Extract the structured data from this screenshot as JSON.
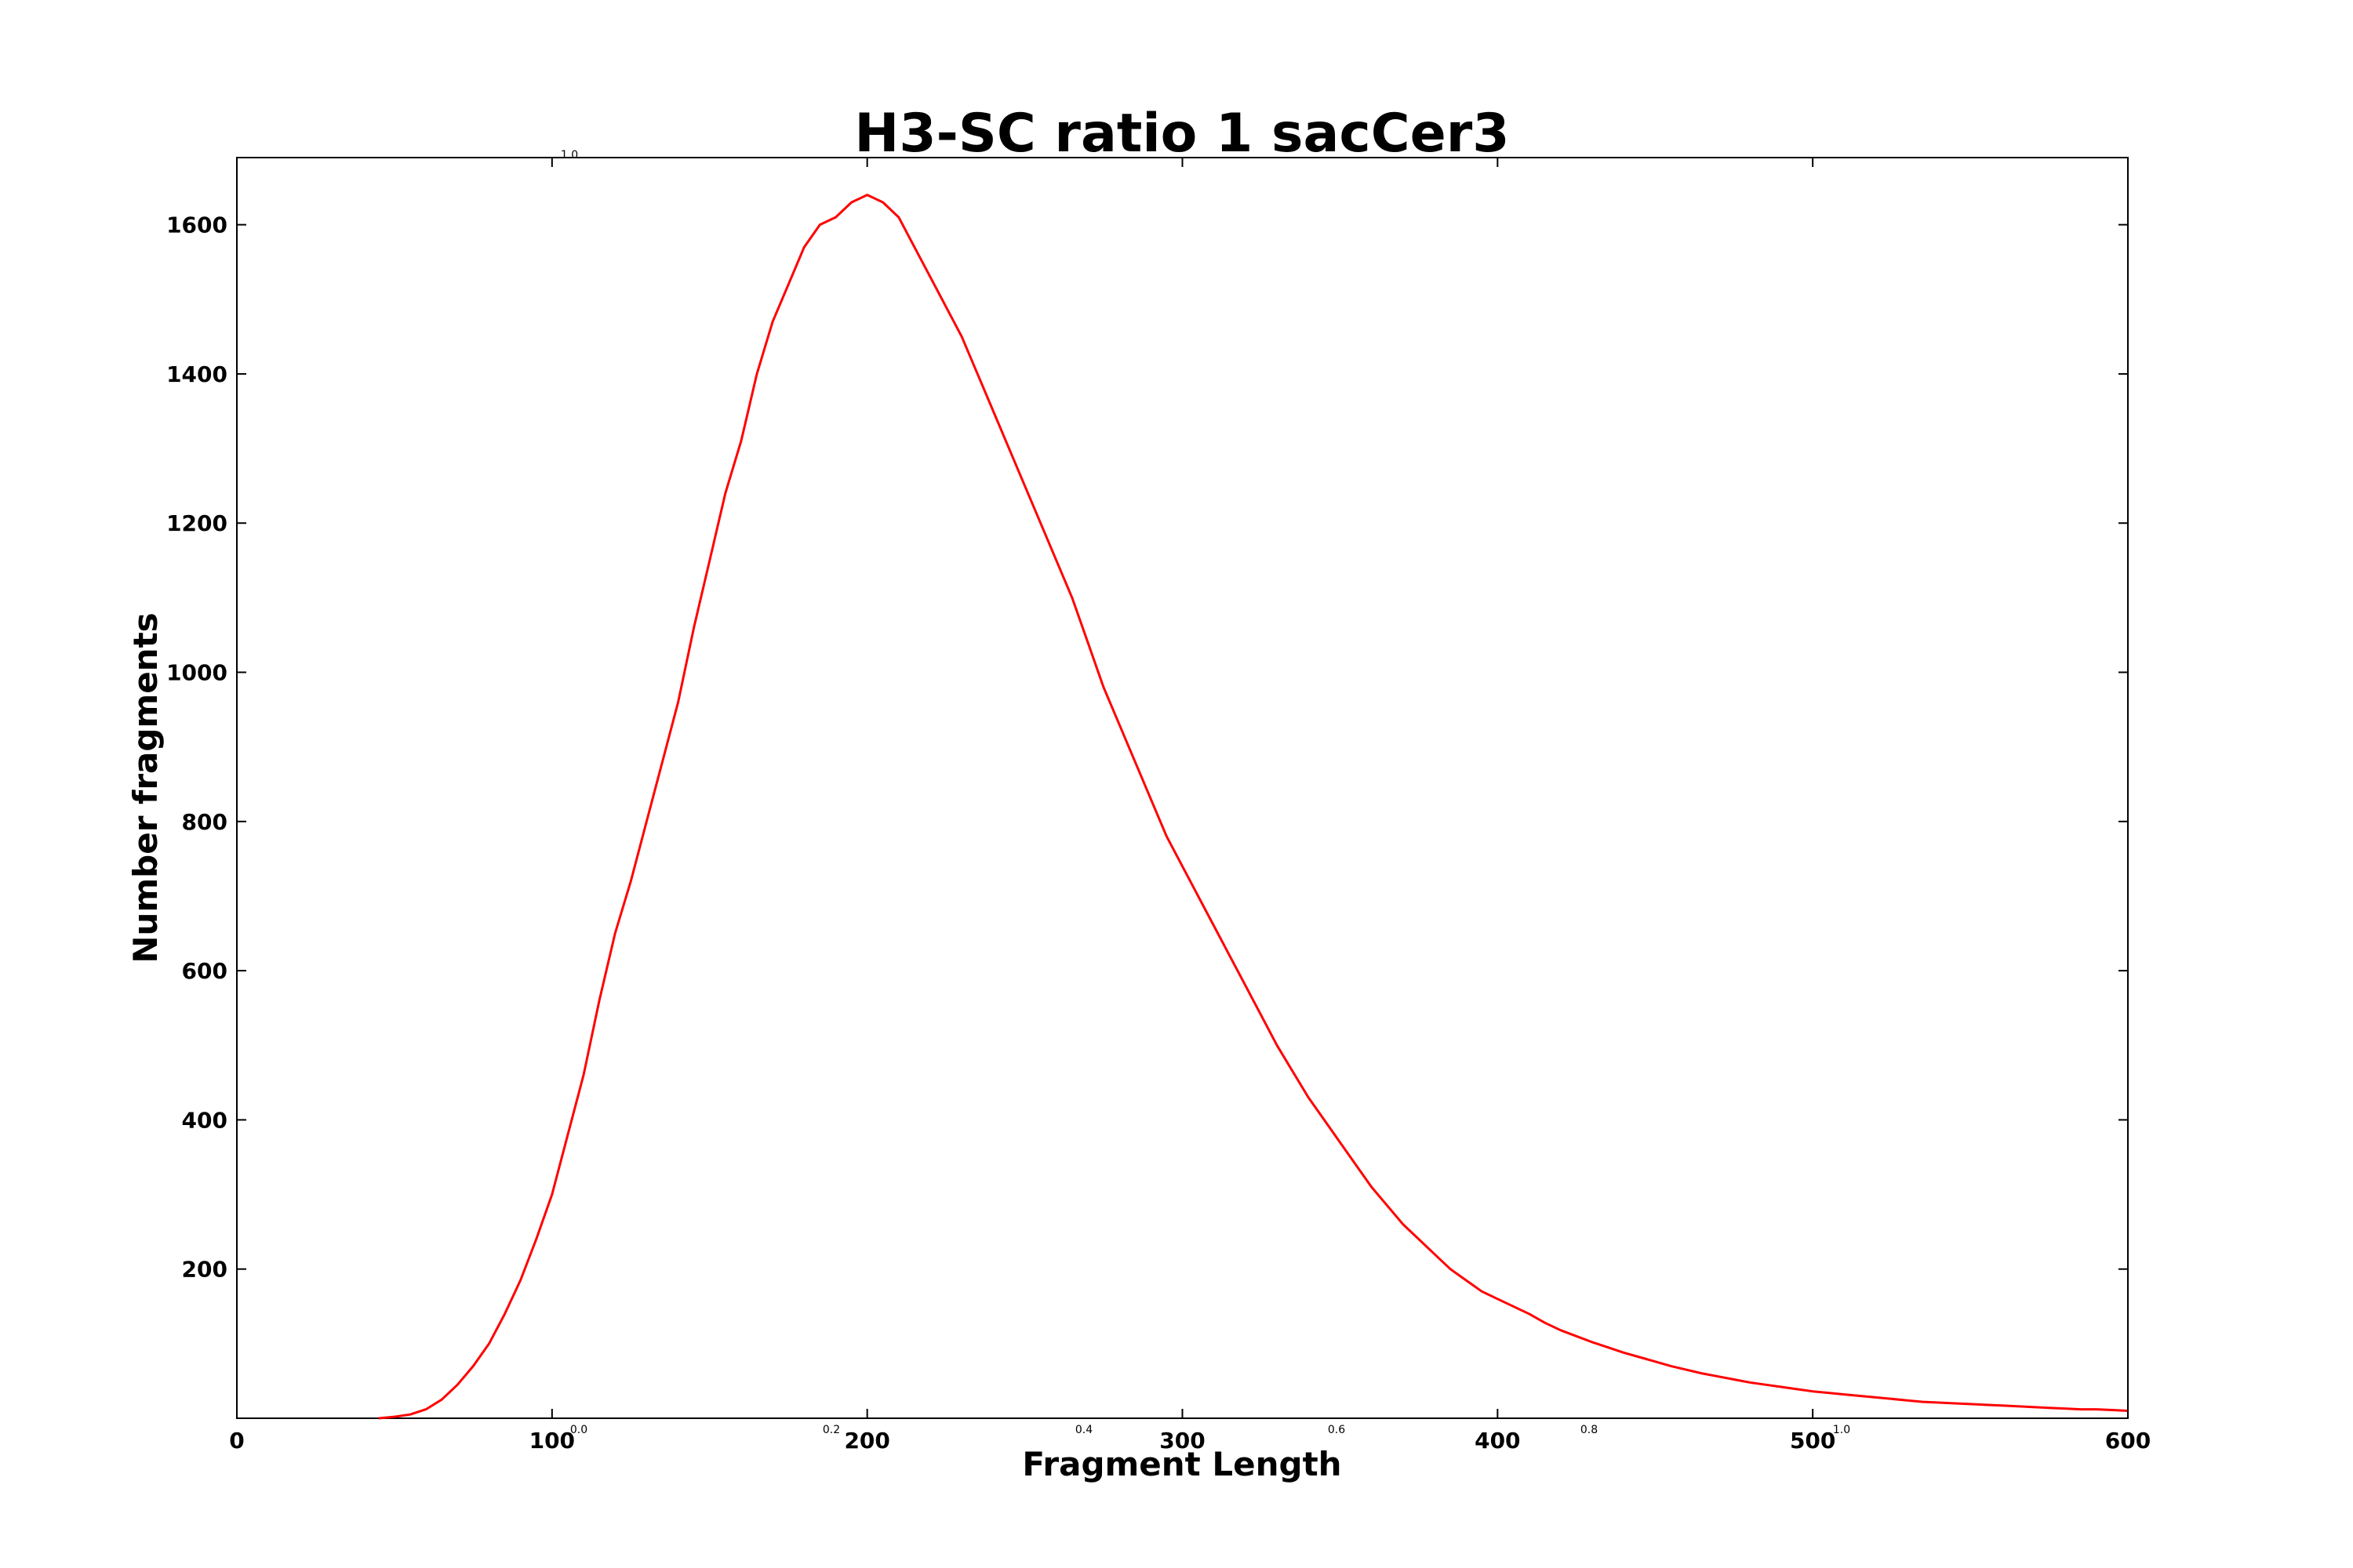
{
  "chart_data": {
    "type": "line",
    "title": "H3-SC ratio 1 sacCer3",
    "xlabel": "Fragment Length",
    "ylabel": "Number fragments",
    "xlim": [
      0,
      600
    ],
    "ylim": [
      0,
      1690
    ],
    "x_ticks": [
      "0",
      "100",
      "200",
      "300",
      "400",
      "500",
      "600"
    ],
    "x_tick_values": [
      0,
      100,
      200,
      300,
      400,
      500,
      600
    ],
    "y_ticks": [
      "200",
      "400",
      "600",
      "800",
      "1000",
      "1200",
      "1400",
      "1600"
    ],
    "y_tick_values": [
      200,
      400,
      600,
      800,
      1000,
      1200,
      1400,
      1600
    ],
    "ghost_axis": {
      "x_ticks": [
        "0.0",
        "0.2",
        "0.4",
        "0.6",
        "0.8",
        "1.0"
      ],
      "y_top_label": "1.0"
    },
    "grid": false,
    "legend": "none",
    "series": [
      {
        "color": "#ff0000",
        "x": [
          45,
          50,
          55,
          60,
          65,
          70,
          75,
          80,
          85,
          90,
          95,
          100,
          105,
          110,
          115,
          120,
          125,
          130,
          135,
          140,
          145,
          150,
          155,
          160,
          165,
          170,
          175,
          180,
          185,
          190,
          195,
          200,
          205,
          210,
          215,
          220,
          225,
          230,
          235,
          240,
          245,
          250,
          255,
          260,
          265,
          270,
          275,
          280,
          285,
          290,
          295,
          300,
          305,
          310,
          315,
          320,
          325,
          330,
          335,
          340,
          345,
          350,
          355,
          360,
          365,
          370,
          375,
          380,
          385,
          390,
          395,
          400,
          405,
          410,
          415,
          420,
          425,
          430,
          435,
          440,
          445,
          450,
          455,
          460,
          465,
          470,
          475,
          480,
          485,
          490,
          495,
          500,
          505,
          510,
          515,
          520,
          525,
          530,
          535,
          540,
          545,
          550,
          555,
          560,
          565,
          570,
          575,
          580,
          585,
          590,
          595,
          600
        ],
        "values": [
          0,
          2,
          5,
          12,
          25,
          45,
          70,
          100,
          140,
          185,
          240,
          300,
          380,
          460,
          560,
          650,
          720,
          800,
          880,
          960,
          1060,
          1150,
          1240,
          1310,
          1400,
          1470,
          1520,
          1570,
          1600,
          1610,
          1630,
          1640,
          1630,
          1610,
          1570,
          1530,
          1490,
          1450,
          1400,
          1350,
          1300,
          1250,
          1200,
          1150,
          1100,
          1040,
          980,
          930,
          880,
          830,
          780,
          740,
          700,
          660,
          620,
          580,
          540,
          500,
          465,
          430,
          400,
          370,
          340,
          310,
          285,
          260,
          240,
          220,
          200,
          185,
          170,
          160,
          150,
          140,
          128,
          118,
          110,
          102,
          95,
          88,
          82,
          76,
          70,
          65,
          60,
          56,
          52,
          48,
          45,
          42,
          39,
          36,
          34,
          32,
          30,
          28,
          26,
          24,
          22,
          21,
          20,
          19,
          18,
          17,
          16,
          15,
          14,
          13,
          12,
          12,
          11,
          10
        ]
      }
    ]
  }
}
